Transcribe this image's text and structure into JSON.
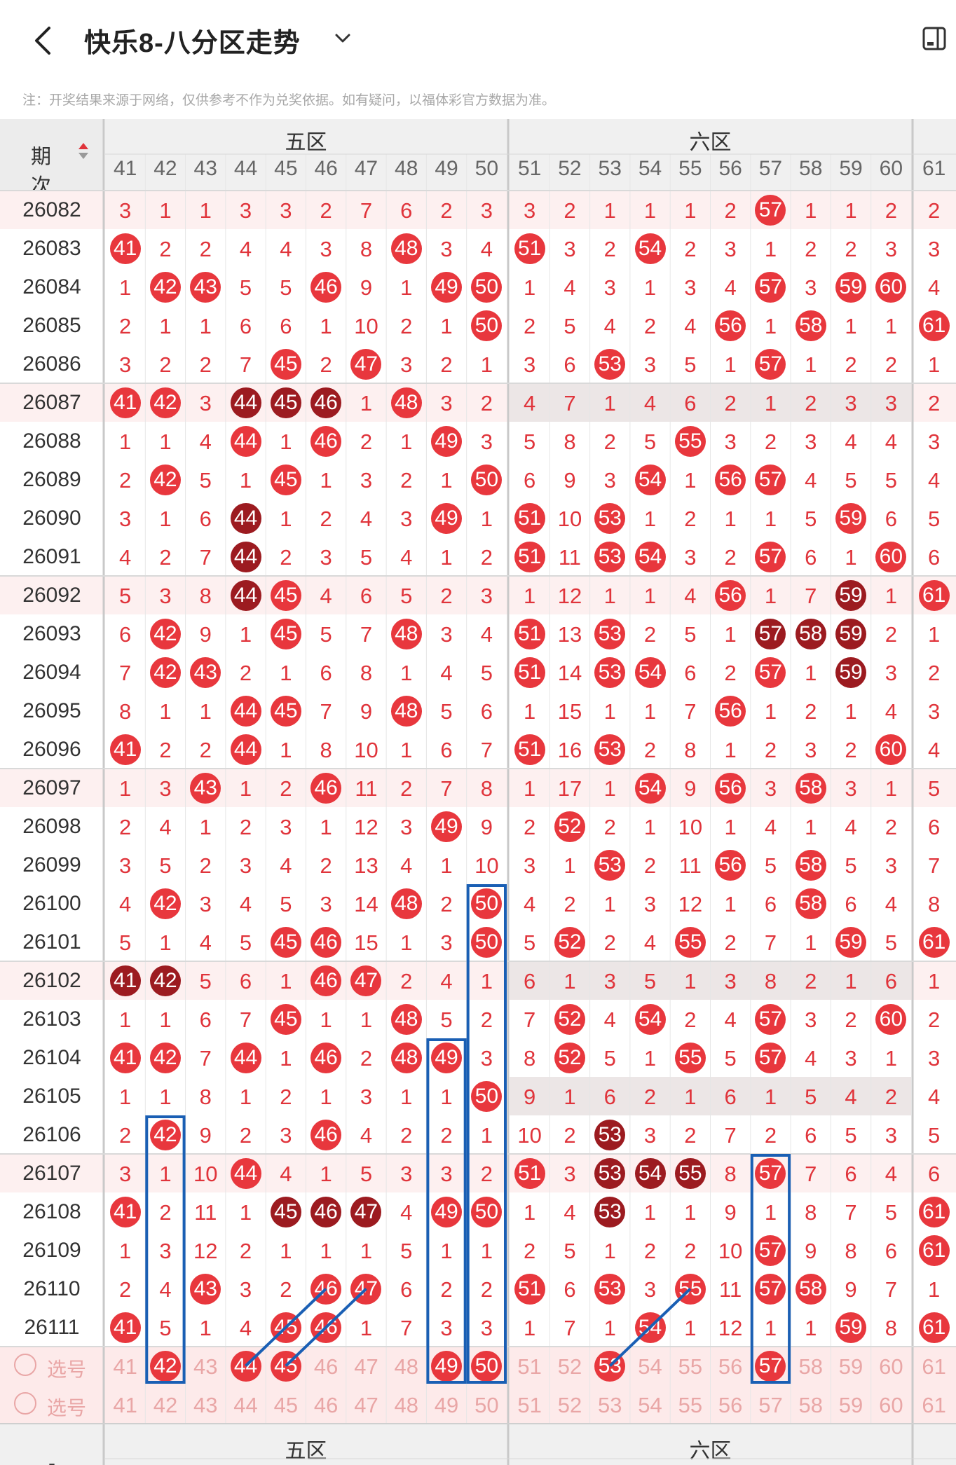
{
  "header": {
    "title": "快乐8-八分区走势",
    "back_icon": "chevron-left-icon",
    "dropdown_icon": "chevron-down-icon",
    "toolbar_icon": "layout-toggle-icon"
  },
  "note": "注：开奖结果来源于网络，仅供参考不作为兑奖依据。如有疑问，以福体彩官方数据为准。",
  "table": {
    "period_header": "期次",
    "zones": [
      "五区",
      "六区"
    ],
    "columns": [
      "41",
      "42",
      "43",
      "44",
      "45",
      "46",
      "47",
      "48",
      "49",
      "50",
      "51",
      "52",
      "53",
      "54",
      "55",
      "56",
      "57",
      "58",
      "59",
      "60",
      "61"
    ],
    "rows": [
      {
        "period": "26082",
        "cells": [
          "3",
          "1",
          "1",
          "3",
          "3",
          "2",
          "7",
          "6",
          "2",
          "3",
          "3",
          "2",
          "1",
          "1",
          "1",
          "2",
          "57",
          "1",
          "1",
          "2",
          "2"
        ]
      },
      {
        "period": "26083",
        "cells": [
          "41",
          "2",
          "2",
          "4",
          "4",
          "3",
          "8",
          "48",
          "3",
          "4",
          "51",
          "3",
          "2",
          "54",
          "2",
          "3",
          "1",
          "2",
          "2",
          "3",
          "3"
        ]
      },
      {
        "period": "26084",
        "cells": [
          "1",
          "42",
          "43",
          "5",
          "5",
          "46",
          "9",
          "1",
          "49",
          "50",
          "1",
          "4",
          "3",
          "1",
          "3",
          "4",
          "57",
          "3",
          "59",
          "60",
          "4"
        ]
      },
      {
        "period": "26085",
        "cells": [
          "2",
          "1",
          "1",
          "6",
          "6",
          "1",
          "10",
          "2",
          "1",
          "50",
          "2",
          "5",
          "4",
          "2",
          "4",
          "56",
          "1",
          "58",
          "1",
          "1",
          "61"
        ]
      },
      {
        "period": "26086",
        "cells": [
          "3",
          "2",
          "2",
          "7",
          "45",
          "2",
          "47",
          "3",
          "2",
          "1",
          "3",
          "6",
          "53",
          "3",
          "5",
          "1",
          "57",
          "1",
          "2",
          "2",
          "1"
        ]
      },
      {
        "period": "26087",
        "cells": [
          "41",
          "42",
          "3",
          "44",
          "45",
          "46",
          "1",
          "48",
          "3",
          "2",
          "4",
          "7",
          "1",
          "4",
          "6",
          "2",
          "1",
          "2",
          "3",
          "3",
          "2"
        ]
      },
      {
        "period": "26088",
        "cells": [
          "1",
          "1",
          "4",
          "44",
          "1",
          "46",
          "2",
          "1",
          "49",
          "3",
          "5",
          "8",
          "2",
          "5",
          "55",
          "3",
          "2",
          "3",
          "4",
          "4",
          "3"
        ]
      },
      {
        "period": "26089",
        "cells": [
          "2",
          "42",
          "5",
          "1",
          "45",
          "1",
          "3",
          "2",
          "1",
          "50",
          "6",
          "9",
          "3",
          "54",
          "1",
          "56",
          "57",
          "4",
          "5",
          "5",
          "4"
        ]
      },
      {
        "period": "26090",
        "cells": [
          "3",
          "1",
          "6",
          "44",
          "1",
          "2",
          "4",
          "3",
          "49",
          "1",
          "51",
          "10",
          "53",
          "1",
          "2",
          "1",
          "1",
          "5",
          "59",
          "6",
          "5"
        ]
      },
      {
        "period": "26091",
        "cells": [
          "4",
          "2",
          "7",
          "44",
          "2",
          "3",
          "5",
          "4",
          "1",
          "2",
          "51",
          "11",
          "53",
          "54",
          "3",
          "2",
          "57",
          "6",
          "1",
          "60",
          "6"
        ]
      },
      {
        "period": "26092",
        "cells": [
          "5",
          "3",
          "8",
          "44",
          "45",
          "4",
          "6",
          "5",
          "2",
          "3",
          "1",
          "12",
          "1",
          "1",
          "4",
          "56",
          "1",
          "7",
          "59",
          "1",
          "61"
        ]
      },
      {
        "period": "26093",
        "cells": [
          "6",
          "42",
          "9",
          "1",
          "45",
          "5",
          "7",
          "48",
          "3",
          "4",
          "51",
          "13",
          "53",
          "2",
          "5",
          "1",
          "57",
          "58",
          "59",
          "2",
          "1"
        ]
      },
      {
        "period": "26094",
        "cells": [
          "7",
          "42",
          "43",
          "2",
          "1",
          "6",
          "8",
          "1",
          "4",
          "5",
          "51",
          "14",
          "53",
          "54",
          "6",
          "2",
          "57",
          "1",
          "59",
          "3",
          "2"
        ]
      },
      {
        "period": "26095",
        "cells": [
          "8",
          "1",
          "1",
          "44",
          "45",
          "7",
          "9",
          "48",
          "5",
          "6",
          "1",
          "15",
          "1",
          "1",
          "7",
          "56",
          "1",
          "2",
          "1",
          "4",
          "3"
        ]
      },
      {
        "period": "26096",
        "cells": [
          "41",
          "2",
          "2",
          "44",
          "1",
          "8",
          "10",
          "1",
          "6",
          "7",
          "51",
          "16",
          "53",
          "2",
          "8",
          "1",
          "2",
          "3",
          "2",
          "60",
          "4"
        ]
      },
      {
        "period": "26097",
        "cells": [
          "1",
          "3",
          "43",
          "1",
          "2",
          "46",
          "11",
          "2",
          "7",
          "8",
          "1",
          "17",
          "1",
          "54",
          "9",
          "56",
          "3",
          "58",
          "3",
          "1",
          "5"
        ]
      },
      {
        "period": "26098",
        "cells": [
          "2",
          "4",
          "1",
          "2",
          "3",
          "1",
          "12",
          "3",
          "49",
          "9",
          "2",
          "52",
          "2",
          "1",
          "10",
          "1",
          "4",
          "1",
          "4",
          "2",
          "6"
        ]
      },
      {
        "period": "26099",
        "cells": [
          "3",
          "5",
          "2",
          "3",
          "4",
          "2",
          "13",
          "4",
          "1",
          "10",
          "3",
          "1",
          "53",
          "2",
          "11",
          "56",
          "5",
          "58",
          "5",
          "3",
          "7"
        ]
      },
      {
        "period": "26100",
        "cells": [
          "4",
          "42",
          "3",
          "4",
          "5",
          "3",
          "14",
          "48",
          "2",
          "50",
          "4",
          "2",
          "1",
          "3",
          "12",
          "1",
          "6",
          "58",
          "6",
          "4",
          "8"
        ]
      },
      {
        "period": "26101",
        "cells": [
          "5",
          "1",
          "4",
          "5",
          "45",
          "46",
          "15",
          "1",
          "3",
          "50",
          "5",
          "52",
          "2",
          "4",
          "55",
          "2",
          "7",
          "1",
          "59",
          "5",
          "61"
        ]
      },
      {
        "period": "26102",
        "cells": [
          "41",
          "42",
          "5",
          "6",
          "1",
          "46",
          "47",
          "2",
          "4",
          "1",
          "6",
          "1",
          "3",
          "5",
          "1",
          "3",
          "8",
          "2",
          "1",
          "6",
          "1"
        ]
      },
      {
        "period": "26103",
        "cells": [
          "1",
          "1",
          "6",
          "7",
          "45",
          "1",
          "1",
          "48",
          "5",
          "2",
          "7",
          "52",
          "4",
          "54",
          "2",
          "4",
          "57",
          "3",
          "2",
          "60",
          "2"
        ]
      },
      {
        "period": "26104",
        "cells": [
          "41",
          "42",
          "7",
          "44",
          "1",
          "46",
          "2",
          "48",
          "49",
          "3",
          "8",
          "52",
          "5",
          "1",
          "55",
          "5",
          "57",
          "4",
          "3",
          "1",
          "3"
        ]
      },
      {
        "period": "26105",
        "cells": [
          "1",
          "1",
          "8",
          "1",
          "2",
          "1",
          "3",
          "1",
          "1",
          "50",
          "9",
          "1",
          "6",
          "2",
          "1",
          "6",
          "1",
          "5",
          "4",
          "2",
          "4"
        ]
      },
      {
        "period": "26106",
        "cells": [
          "2",
          "42",
          "9",
          "2",
          "3",
          "46",
          "4",
          "2",
          "2",
          "1",
          "10",
          "2",
          "53",
          "3",
          "2",
          "7",
          "2",
          "6",
          "5",
          "3",
          "5"
        ]
      },
      {
        "period": "26107",
        "cells": [
          "3",
          "1",
          "10",
          "44",
          "4",
          "1",
          "5",
          "3",
          "3",
          "2",
          "51",
          "3",
          "53",
          "54",
          "55",
          "8",
          "57",
          "7",
          "6",
          "4",
          "6"
        ]
      },
      {
        "period": "26108",
        "cells": [
          "41",
          "2",
          "11",
          "1",
          "45",
          "46",
          "47",
          "4",
          "49",
          "50",
          "1",
          "4",
          "53",
          "1",
          "1",
          "9",
          "1",
          "8",
          "7",
          "5",
          "61"
        ]
      },
      {
        "period": "26109",
        "cells": [
          "1",
          "3",
          "12",
          "2",
          "1",
          "1",
          "1",
          "5",
          "1",
          "1",
          "2",
          "5",
          "1",
          "2",
          "2",
          "10",
          "57",
          "9",
          "8",
          "6",
          "61"
        ]
      },
      {
        "period": "26110",
        "cells": [
          "2",
          "4",
          "43",
          "3",
          "2",
          "46",
          "47",
          "6",
          "2",
          "2",
          "51",
          "6",
          "53",
          "3",
          "55",
          "11",
          "57",
          "58",
          "9",
          "7",
          "1"
        ]
      },
      {
        "period": "26111",
        "cells": [
          "41",
          "5",
          "1",
          "4",
          "45",
          "46",
          "1",
          "7",
          "3",
          "3",
          "1",
          "7",
          "1",
          "54",
          "1",
          "12",
          "1",
          "1",
          "59",
          "8",
          "61"
        ]
      }
    ],
    "selector_label": "选号",
    "selector_row1_balls": [
      "42",
      "44",
      "45",
      "49",
      "50",
      "53",
      "57"
    ],
    "footer_dash": "-"
  },
  "colors": {
    "ball_red": "#e8373d",
    "ball_dark": "#9c1b20",
    "number_text": "#e0343b",
    "highlight_box": "#1a5fb4",
    "row_tint": "#fdf0f0",
    "grey_row": "#ece6e6"
  }
}
